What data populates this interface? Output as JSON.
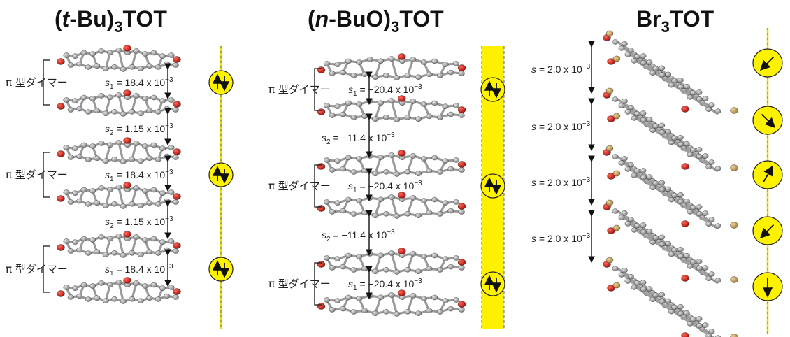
{
  "panels": [
    {
      "title_pre": "(",
      "title_italic": "t",
      "title_mid": "-Bu)",
      "title_sub": "3",
      "title_post": "TOT",
      "band_style": "line",
      "dimer_label": "π 型ダイマー",
      "intra": {
        "sym": "s",
        "sub": "1",
        "text": " = 18.4 x 10",
        "exp": "−3"
      },
      "inter": {
        "sym": "s",
        "sub": "2",
        "text": " = 1.15 x 10",
        "exp": "−3"
      },
      "spins": [
        "pair",
        "pair",
        "pair"
      ]
    },
    {
      "title_pre": "(",
      "title_italic": "n",
      "title_mid": "-BuO)",
      "title_sub": "3",
      "title_post": "TOT",
      "band_style": "band",
      "dimer_label": "π 型ダイマー",
      "intra": {
        "sym": "s",
        "sub": "1",
        "text": " = −20.4 x 10",
        "exp": "−3"
      },
      "inter": {
        "sym": "s",
        "sub": "2",
        "text": " = −11.4 x 10",
        "exp": "−3"
      },
      "spins": [
        "pair",
        "pair",
        "pair"
      ]
    },
    {
      "title_pre": "Br",
      "title_italic": "",
      "title_mid": "",
      "title_sub": "3",
      "title_post": "TOT",
      "band_style": "line",
      "uniform": {
        "sym": "s",
        "text": " = 2.0 x 10",
        "exp": "−3"
      },
      "spins_deg": [
        -135,
        135,
        30,
        225,
        180
      ]
    }
  ],
  "colors": {
    "atom_c": "#8c8c8c",
    "atom_o": "#c0140f",
    "atom_br": "#c49a4e",
    "spin_fill": "#fff200",
    "band": "#fff200",
    "line": "#f0dc00"
  }
}
